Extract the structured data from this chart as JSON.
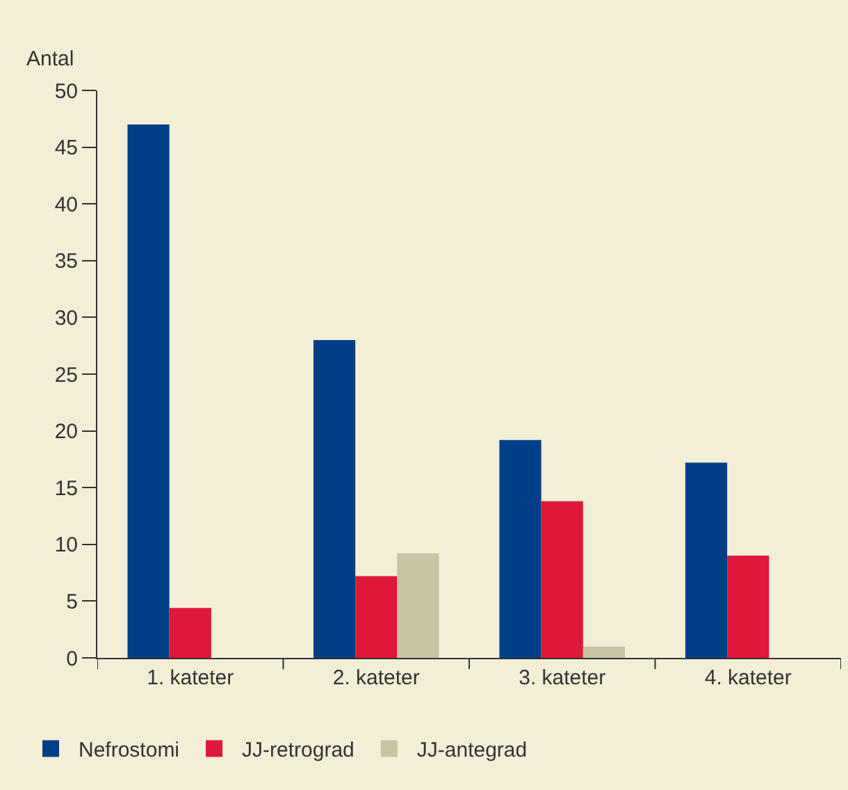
{
  "chart_data": {
    "type": "bar",
    "ylabel": "Antal",
    "categories": [
      "1. kateter",
      "2. kateter",
      "3. kateter",
      "4. kateter"
    ],
    "series": [
      {
        "name": "Nefrostomi",
        "color": "#003f87",
        "values": [
          47,
          28,
          19.2,
          17.2
        ]
      },
      {
        "name": "JJ-retrograd",
        "color": "#e0173a",
        "values": [
          4.4,
          7.2,
          13.8,
          9
        ]
      },
      {
        "name": "JJ-antegrad",
        "color": "#c8c3a3",
        "values": [
          null,
          9.2,
          1,
          null
        ]
      }
    ],
    "ylim": [
      0,
      50
    ],
    "yticks": [
      0,
      5,
      10,
      15,
      20,
      25,
      30,
      35,
      40,
      45,
      50
    ],
    "grid": false,
    "legend": "bottom left"
  }
}
